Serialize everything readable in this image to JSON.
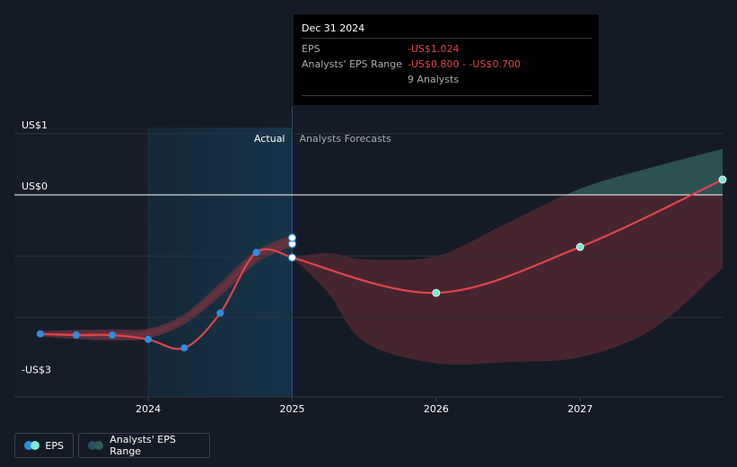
{
  "tooltip": {
    "date": "Dec 31 2024",
    "eps_label": "EPS",
    "eps_value": "-US$1.024",
    "range_label": "Analysts' EPS Range",
    "range_value": "-US$0.800 - -US$0.700",
    "analysts": "9 Analysts"
  },
  "legend": {
    "eps": "EPS",
    "range": "Analysts' EPS Range"
  },
  "colors": {
    "background": "#151b26",
    "eps_line": "#e0454a",
    "forecast_marker": "#7ee8d4",
    "actual_marker": "#2f8ee0",
    "range_negative": "#5a2a33",
    "range_positive": "#2f5a5a"
  },
  "chart_data": {
    "type": "line",
    "region_labels": {
      "actual": "Actual",
      "forecast": "Analysts Forecasts"
    },
    "y_tick_labels": [
      {
        "label": "US$1",
        "value": 1
      },
      {
        "label": "US$0",
        "value": 0
      },
      {
        "label": "-US$3",
        "value": -3
      }
    ],
    "x_tick_labels": [
      {
        "label": "2024",
        "value": 2024.0
      },
      {
        "label": "2025",
        "value": 2025.0
      },
      {
        "label": "2026",
        "value": 2026.0
      },
      {
        "label": "2027",
        "value": 2027.0
      }
    ],
    "ylim": [
      -3.3,
      1.1
    ],
    "xlim": [
      2023.07,
      2027.99
    ],
    "gridlines": [
      1,
      0,
      -1,
      -2
    ],
    "highlight_period": [
      2024.0,
      2025.0
    ],
    "forecast_start": 2025.0,
    "series": [
      {
        "name": "EPS",
        "role": "actual",
        "points": [
          {
            "x": 2023.25,
            "y": -2.27
          },
          {
            "x": 2023.5,
            "y": -2.29
          },
          {
            "x": 2023.75,
            "y": -2.29
          },
          {
            "x": 2024.0,
            "y": -2.36
          },
          {
            "x": 2024.25,
            "y": -2.5
          },
          {
            "x": 2024.5,
            "y": -1.93
          },
          {
            "x": 2024.75,
            "y": -0.94
          },
          {
            "x": 2025.0,
            "y": -1.024
          }
        ]
      },
      {
        "name": "EPS",
        "role": "forecast",
        "points": [
          {
            "x": 2025.0,
            "y": -1.024
          },
          {
            "x": 2026.0,
            "y": -1.6
          },
          {
            "x": 2027.0,
            "y": -0.85
          },
          {
            "x": 2027.99,
            "y": 0.25
          }
        ]
      },
      {
        "name": "Analysts' EPS Range",
        "role": "actual_range",
        "x": [
          2023.25,
          2023.5,
          2023.75,
          2024.0,
          2024.25,
          2024.5,
          2024.75,
          2025.0
        ],
        "low": [
          -2.27,
          -2.31,
          -2.33,
          -2.3,
          -2.06,
          -1.6,
          -1.06,
          -0.8
        ],
        "high": [
          -2.27,
          -2.25,
          -2.24,
          -2.23,
          -2.0,
          -1.5,
          -0.96,
          -0.7
        ]
      },
      {
        "name": "Analysts' EPS Range",
        "role": "forecast_range",
        "x": [
          2025.0,
          2025.25,
          2025.5,
          2026.0,
          2026.5,
          2027.0,
          2027.5,
          2027.99
        ],
        "low": [
          -1.024,
          -1.6,
          -2.4,
          -2.75,
          -2.73,
          -2.65,
          -2.2,
          -1.2
        ],
        "high": [
          -1.024,
          -0.95,
          -1.05,
          -1.0,
          -0.45,
          0.1,
          0.45,
          0.75
        ]
      }
    ]
  }
}
